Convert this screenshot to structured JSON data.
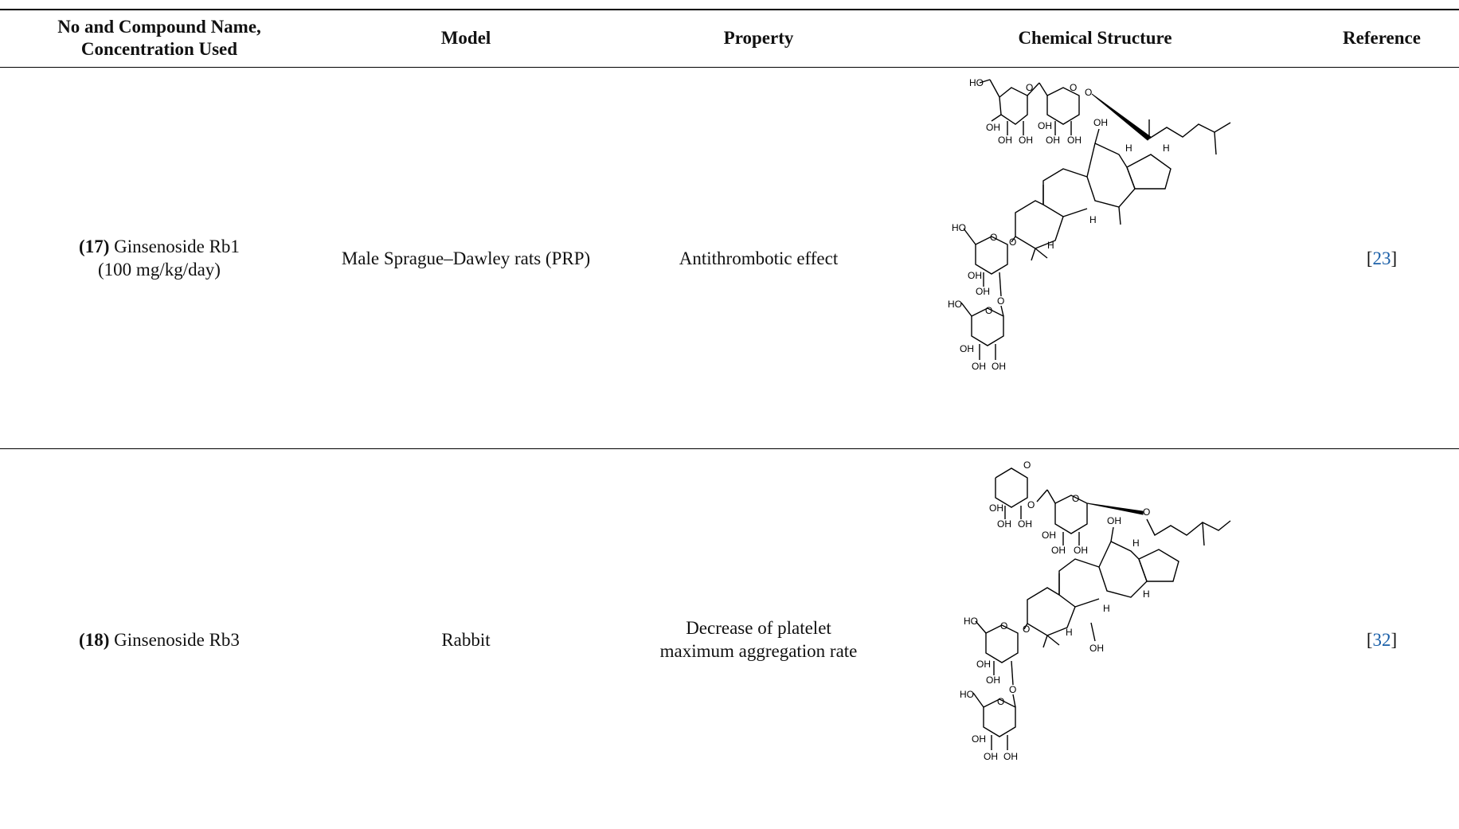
{
  "table": {
    "headers": [
      "No and Compound Name, Concentration Used",
      "Model",
      "Property",
      "Chemical Structure",
      "Reference"
    ],
    "rows": [
      {
        "number": "(17)",
        "compound": "Ginsenoside Rb1",
        "concentration": "(100 mg/kg/day)",
        "model": "Male Sprague–Dawley rats (PRP)",
        "property": "Antithrombotic effect",
        "ref_open": "[",
        "ref_num": "23",
        "ref_close": "]"
      },
      {
        "number": "(18)",
        "compound": "Ginsenoside Rb3",
        "concentration": "",
        "model": "Rabbit",
        "property_line1": "Decrease of platelet",
        "property_line2": "maximum aggregation rate",
        "ref_open": "[",
        "ref_num": "32",
        "ref_close": "]"
      }
    ]
  },
  "structure_labels": {
    "ho": "HO",
    "oh": "OH",
    "o": "O",
    "h": "H"
  },
  "colors": {
    "reference_link": "#1a5fa8"
  }
}
